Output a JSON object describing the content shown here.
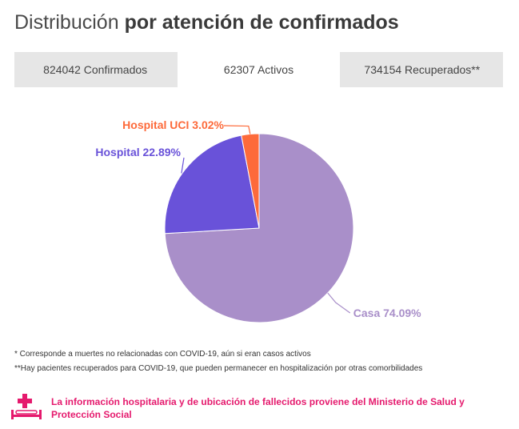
{
  "title": {
    "light": "Distribución",
    "bold": "por atención de confirmados"
  },
  "tabs": [
    {
      "label": "824042 Confirmados",
      "active": false
    },
    {
      "label": "62307 Activos",
      "active": true
    },
    {
      "label": "734154 Recuperados**",
      "active": false
    }
  ],
  "chart_data": {
    "type": "pie",
    "title": "",
    "slices": [
      {
        "name": "Casa",
        "label": "Casa 74.09%",
        "value": 74.09,
        "color": "#a98fc9"
      },
      {
        "name": "Hospital",
        "label": "Hospital 22.89%",
        "value": 22.89,
        "color": "#6952d9"
      },
      {
        "name": "Hospital UCI",
        "label": "Hospital UCI 3.02%",
        "value": 3.02,
        "color": "#fd6a3a"
      }
    ],
    "start": "top",
    "direction": "clockwise"
  },
  "footnotes": [
    "* Corresponde a muertes no relacionadas con COVID-19, aún si eran casos activos",
    "**Hay pacientes recuperados para COVID-19, que pueden permanecer en hospitalización por otras comorbilidades"
  ],
  "source": {
    "text": "La información hospitalaria y de ubicación de fallecidos proviene del Ministerio de Salud y Protección Social",
    "icon": "hospital-bed-icon",
    "color": "#e5196d"
  }
}
